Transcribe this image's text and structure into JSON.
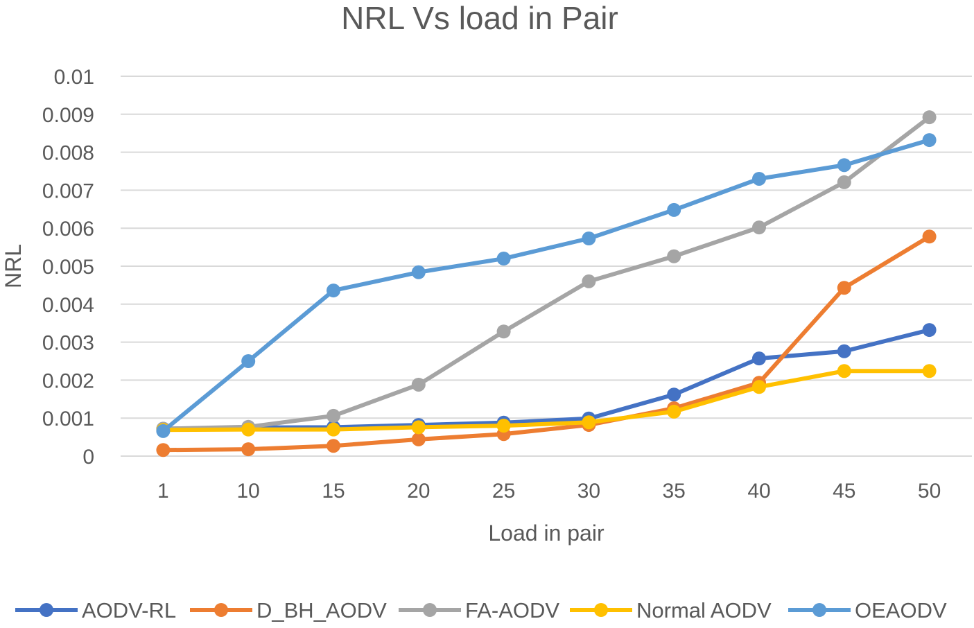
{
  "chart_data": {
    "type": "line",
    "title": "NRL Vs load in Pair",
    "xlabel": "Load in pair",
    "ylabel": "NRL",
    "categories": [
      "1",
      "10",
      "15",
      "20",
      "25",
      "30",
      "35",
      "40",
      "45",
      "50"
    ],
    "ylim": [
      0,
      0.01
    ],
    "yticks": [
      "0",
      "0.001",
      "0.002",
      "0.003",
      "0.004",
      "0.005",
      "0.006",
      "0.007",
      "0.008",
      "0.009",
      "0.01"
    ],
    "grid": true,
    "legend_position": "bottom",
    "series": [
      {
        "name": "AODV-RL",
        "color": "#4472C4",
        "values": [
          0.00072,
          0.00075,
          0.00076,
          0.00082,
          0.00088,
          0.00099,
          0.00162,
          0.00257,
          0.00276,
          0.00332
        ]
      },
      {
        "name": "D_BH_AODV",
        "color": "#ED7D31",
        "values": [
          0.00016,
          0.00018,
          0.00027,
          0.00044,
          0.00058,
          0.00082,
          0.00126,
          0.00193,
          0.00443,
          0.00578
        ]
      },
      {
        "name": "FA-AODV",
        "color": "#A5A5A5",
        "values": [
          0.00072,
          0.00077,
          0.00106,
          0.00188,
          0.00328,
          0.0046,
          0.00526,
          0.00602,
          0.00721,
          0.00892
        ]
      },
      {
        "name": "Normal AODV",
        "color": "#FFC000",
        "values": [
          0.00069,
          0.0007,
          0.0007,
          0.00076,
          0.0008,
          0.00089,
          0.00117,
          0.00182,
          0.00224,
          0.00224
        ]
      },
      {
        "name": "OEAODV",
        "color": "#5B9BD5",
        "values": [
          0.00066,
          0.0025,
          0.00436,
          0.00484,
          0.0052,
          0.00573,
          0.00648,
          0.0073,
          0.00766,
          0.00832
        ]
      }
    ]
  }
}
